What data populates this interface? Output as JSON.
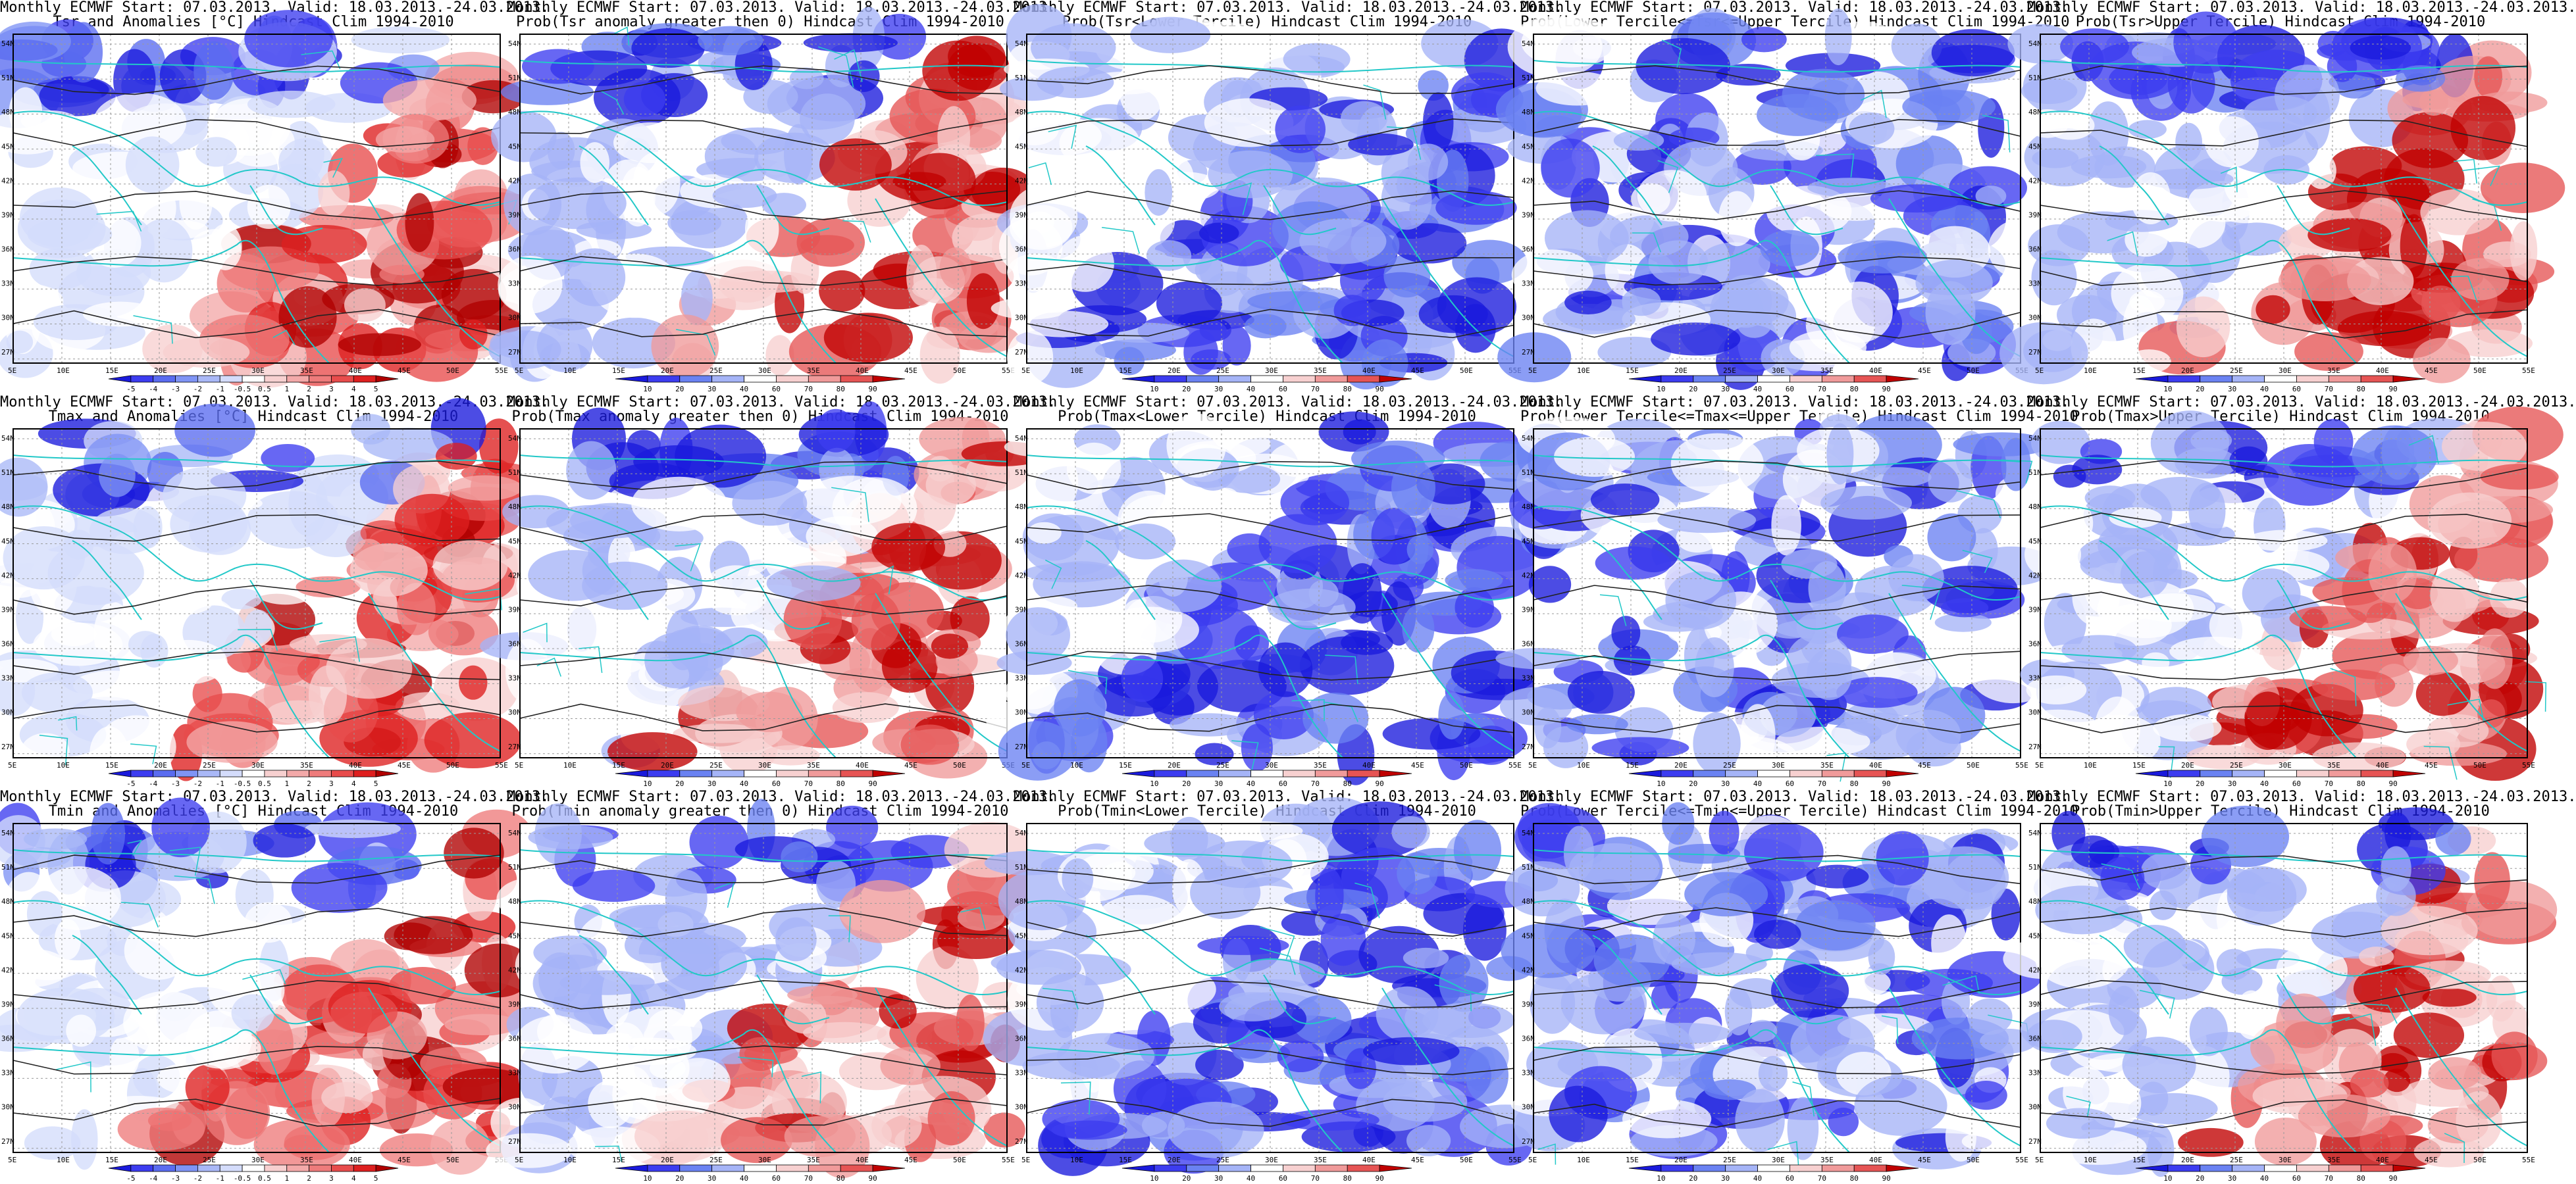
{
  "figure": {
    "panels": [
      {
        "title_line1": "Monthly ECMWF Start: 07.03.2013. Valid: 18.03.2013.-24.03.2013.",
        "title_line2": "Tsr and Anomalies [°C] Hindcast Clim 1994-2010",
        "scale": "anomaly"
      },
      {
        "title_line1": "Monthly ECMWF Start: 07.03.2013. Valid: 18.03.2013.-24.03.2013.",
        "title_line2": "Prob(Tsr anomaly greater then 0) Hindcast Clim 1994-2010",
        "scale": "probability"
      },
      {
        "title_line1": "Monthly ECMWF Start: 07.03.2013. Valid: 18.03.2013.-24.03.2013.",
        "title_line2": "Prob(Tsr<Lower Tercile) Hindcast Clim 1994-2010",
        "scale": "probability"
      },
      {
        "title_line1": "Monthly ECMWF Start: 07.03.2013. Valid: 18.03.2013.-24.03.2013.",
        "title_line2": "Prob(Lower Tercile<=Tsr<=Upper Tercile) Hindcast Clim 1994-2010",
        "scale": "probability"
      },
      {
        "title_line1": "Monthly ECMWF Start: 07.03.2013. Valid: 18.03.2013.-24.03.2013.",
        "title_line2": "Prob(Tsr>Upper Tercile) Hindcast Clim 1994-2010",
        "scale": "probability"
      },
      {
        "title_line1": "Monthly ECMWF Start: 07.03.2013. Valid: 18.03.2013.-24.03.2013.",
        "title_line2": "Tmax and Anomalies [°C] Hindcast Clim 1994-2010",
        "scale": "anomaly"
      },
      {
        "title_line1": "Monthly ECMWF Start: 07.03.2013. Valid: 18.03.2013.-24.03.2013.",
        "title_line2": "Prob(Tmax anomaly greater then 0) Hindcast Clim 1994-2010",
        "scale": "probability"
      },
      {
        "title_line1": "Monthly ECMWF Start: 07.03.2013. Valid: 18.03.2013.-24.03.2013.",
        "title_line2": "Prob(Tmax<Lower Tercile) Hindcast Clim 1994-2010",
        "scale": "probability"
      },
      {
        "title_line1": "Monthly ECMWF Start: 07.03.2013. Valid: 18.03.2013.-24.03.2013.",
        "title_line2": "Prob(Lower Tercile<=Tmax<=Upper Tercile) Hindcast Clim 1994-2010",
        "scale": "probability"
      },
      {
        "title_line1": "Monthly ECMWF Start: 07.03.2013. Valid: 18.03.2013.-24.03.2013.",
        "title_line2": "Prob(Tmax>Upper Tercile) Hindcast Clim 1994-2010",
        "scale": "probability"
      },
      {
        "title_line1": "Monthly ECMWF Start: 07.03.2013. Valid: 18.03.2013.-24.03.2013.",
        "title_line2": "Tmin and Anomalies [°C] Hindcast Clim 1994-2010",
        "scale": "anomaly"
      },
      {
        "title_line1": "Monthly ECMWF Start: 07.03.2013. Valid: 18.03.2013.-24.03.2013.",
        "title_line2": "Prob(Tmin anomaly greater then 0) Hindcast Clim 1994-2010",
        "scale": "probability"
      },
      {
        "title_line1": "Monthly ECMWF Start: 07.03.2013. Valid: 18.03.2013.-24.03.2013.",
        "title_line2": "Prob(Tmin<Lower Tercile) Hindcast Clim 1994-2010",
        "scale": "probability"
      },
      {
        "title_line1": "Monthly ECMWF Start: 07.03.2013. Valid: 18.03.2013.-24.03.2013.",
        "title_line2": "Prob(Lower Tercile<=Tmin<=Upper Tercile) Hindcast Clim 1994-2010",
        "scale": "probability"
      },
      {
        "title_line1": "Monthly ECMWF Start: 07.03.2013. Valid: 18.03.2013.-24.03.2013.",
        "title_line2": "Prob(Tmin>Upper Tercile) Hindcast Clim 1994-2010",
        "scale": "probability"
      }
    ],
    "lat_labels": [
      "54N",
      "51N",
      "48N",
      "45N",
      "42N",
      "39N",
      "36N",
      "33N",
      "30N",
      "27N"
    ],
    "lon_labels": [
      "5E",
      "10E",
      "15E",
      "20E",
      "25E",
      "30E",
      "35E",
      "40E",
      "45E",
      "50E",
      "55E"
    ],
    "colorbars": {
      "anomaly": {
        "labels": [
          "-5",
          "-4",
          "-3",
          "-2",
          "-1",
          "-0.5",
          "0.5",
          "1",
          "2",
          "3",
          "4",
          "5"
        ],
        "colors": [
          "#1a1adc",
          "#3c3cf0",
          "#5a6cf0",
          "#7f94f5",
          "#a9b8f7",
          "#d4dcfb",
          "#ffffff",
          "#f7d0d0",
          "#f3a9a9",
          "#ee7b7b",
          "#e84c4c",
          "#de1f1f",
          "#b00000"
        ]
      },
      "probability": {
        "labels": [
          "10",
          "20",
          "30",
          "40",
          "60",
          "70",
          "80",
          "90"
        ],
        "colors": [
          "#1a1adc",
          "#3c3cf0",
          "#6a82f2",
          "#a5b4f7",
          "#ffffff",
          "#f7d0d0",
          "#f09a9a",
          "#e65454",
          "#c00000"
        ]
      }
    },
    "colors": {
      "coastline": "#22c8c8",
      "contour": "#222222",
      "grid": "#9a9a9a",
      "frame": "#000000"
    }
  }
}
